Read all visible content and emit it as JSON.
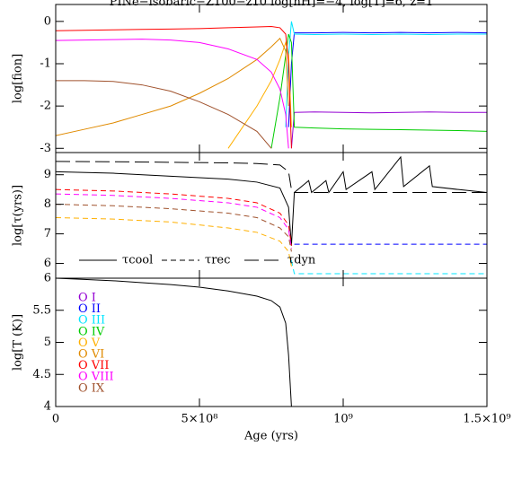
{
  "chart_data": [
    {
      "type": "line",
      "title": "PINe−isobaric−Z100−z10  log[nH]=−4, log[T]=6, z=1",
      "ylabel": "log[fion]",
      "x": [
        0,
        100000000,
        200000000,
        300000000,
        400000000,
        500000000,
        600000000,
        700000000,
        750000000,
        780000000,
        800000000,
        810000000,
        820000000,
        830000000,
        900000000,
        1000000000,
        1100000000,
        1200000000,
        1300000000,
        1400000000,
        1500000000
      ],
      "xlim": [
        0,
        1500000000
      ],
      "ylim": [
        -3.1,
        0.4
      ],
      "yticks": [
        0,
        -1,
        -2,
        -3
      ],
      "series": [
        {
          "name": "O I",
          "color": "#9400d3",
          "dash": "solid",
          "values": [
            null,
            null,
            null,
            null,
            null,
            null,
            null,
            null,
            null,
            null,
            null,
            null,
            -3,
            -2.15,
            -2.14,
            -2.15,
            -2.16,
            -2.15,
            -2.14,
            -2.15,
            -2.15
          ]
        },
        {
          "name": "O II",
          "color": "#0000ff",
          "dash": "solid",
          "values": [
            null,
            null,
            null,
            null,
            null,
            null,
            null,
            null,
            null,
            null,
            null,
            -2.5,
            -1,
            -0.27,
            -0.27,
            -0.26,
            -0.27,
            -0.26,
            -0.27,
            -0.26,
            -0.27
          ]
        },
        {
          "name": "O III",
          "color": "#00e5ff",
          "dash": "solid",
          "values": [
            null,
            null,
            null,
            null,
            null,
            null,
            null,
            null,
            null,
            null,
            -2.5,
            -0.8,
            0,
            -0.3,
            -0.31,
            -0.3,
            -0.31,
            -0.3,
            -0.31,
            -0.3,
            -0.3
          ]
        },
        {
          "name": "O IV",
          "color": "#00cc00",
          "dash": "solid",
          "values": [
            null,
            null,
            null,
            null,
            null,
            null,
            null,
            null,
            -3,
            -1.8,
            -0.8,
            -0.3,
            -0.5,
            -2.5,
            -2.52,
            -2.54,
            -2.55,
            -2.56,
            -2.57,
            -2.58,
            -2.6
          ]
        },
        {
          "name": "O V",
          "color": "#ffb000",
          "dash": "solid",
          "values": [
            null,
            null,
            null,
            null,
            null,
            null,
            -3,
            -2,
            -1.4,
            -0.9,
            -0.5,
            -0.8,
            -2.5,
            null,
            null,
            null,
            null,
            null,
            null,
            null,
            null
          ]
        },
        {
          "name": "O VI",
          "color": "#e08a00",
          "dash": "solid",
          "values": [
            -2.7,
            -2.55,
            -2.4,
            -2.2,
            -2.0,
            -1.7,
            -1.35,
            -0.9,
            -0.6,
            -0.4,
            -0.7,
            -2.0,
            null,
            null,
            null,
            null,
            null,
            null,
            null,
            null,
            null
          ]
        },
        {
          "name": "O VII",
          "color": "#ff0000",
          "dash": "solid",
          "values": [
            -0.22,
            -0.21,
            -0.2,
            -0.19,
            -0.18,
            -0.17,
            -0.15,
            -0.13,
            -0.12,
            -0.15,
            -0.3,
            -1.0,
            -3.0,
            null,
            null,
            null,
            null,
            null,
            null,
            null,
            null
          ]
        },
        {
          "name": "O VIII",
          "color": "#ff00ff",
          "dash": "solid",
          "values": [
            -0.45,
            -0.44,
            -0.43,
            -0.42,
            -0.44,
            -0.5,
            -0.65,
            -0.9,
            -1.2,
            -1.6,
            -2.2,
            -3.0,
            null,
            null,
            null,
            null,
            null,
            null,
            null,
            null,
            null
          ]
        },
        {
          "name": "O IX",
          "color": "#a0522d",
          "dash": "solid",
          "values": [
            -1.4,
            -1.4,
            -1.42,
            -1.5,
            -1.65,
            -1.9,
            -2.2,
            -2.6,
            -3.0,
            null,
            null,
            null,
            null,
            null,
            null,
            null,
            null,
            null,
            null,
            null,
            null
          ]
        }
      ]
    },
    {
      "type": "line",
      "ylabel": "log[τ(yrs)]",
      "x": [
        0,
        200000000,
        400000000,
        600000000,
        700000000,
        780000000,
        810000000,
        820000000,
        830000000,
        880000000,
        890000000,
        940000000,
        950000000,
        1000000000,
        1010000000,
        1100000000,
        1110000000,
        1200000000,
        1210000000,
        1300000000,
        1310000000,
        1400000000,
        1500000000
      ],
      "xlim": [
        0,
        1500000000
      ],
      "ylim": [
        5.5,
        9.75
      ],
      "yticks": [
        6,
        7,
        8,
        9
      ],
      "legend": [
        {
          "name": "τcool",
          "dash": "solid"
        },
        {
          "name": "τrec",
          "dash": "dashed"
        },
        {
          "name": "τdyn",
          "dash": "longdash"
        }
      ],
      "series": [
        {
          "color": "#000000",
          "dash": "solid",
          "values": [
            9.1,
            9.05,
            8.95,
            8.85,
            8.75,
            8.55,
            7.9,
            6.6,
            8.4,
            8.8,
            8.4,
            8.8,
            8.4,
            9.1,
            8.5,
            9.1,
            8.5,
            9.6,
            8.6,
            9.3,
            8.6,
            8.5,
            8.4
          ]
        },
        {
          "color": "#000000",
          "dash": "longdash",
          "values": [
            9.45,
            9.44,
            9.42,
            9.4,
            9.38,
            9.33,
            9.1,
            8.5,
            8.4,
            8.4,
            8.4,
            8.4,
            8.4,
            8.4,
            8.4,
            8.4,
            8.4,
            8.4,
            8.4,
            8.4,
            8.4,
            8.4,
            8.4
          ]
        },
        {
          "color": "#ff0000",
          "dash": "dashed",
          "values": [
            8.5,
            8.45,
            8.35,
            8.2,
            8.05,
            7.7,
            7.3,
            6.6,
            null,
            null,
            null,
            null,
            null,
            null,
            null,
            null,
            null,
            null,
            null,
            null,
            null,
            null,
            null
          ]
        },
        {
          "color": "#ff00ff",
          "dash": "dashed",
          "values": [
            8.35,
            8.3,
            8.2,
            8.05,
            7.9,
            7.55,
            7.15,
            6.5,
            null,
            null,
            null,
            null,
            null,
            null,
            null,
            null,
            null,
            null,
            null,
            null,
            null,
            null,
            null
          ]
        },
        {
          "color": "#a0522d",
          "dash": "dashed",
          "values": [
            8.0,
            7.95,
            7.85,
            7.7,
            7.55,
            7.2,
            6.9,
            6.4,
            null,
            null,
            null,
            null,
            null,
            null,
            null,
            null,
            null,
            null,
            null,
            null,
            null,
            null,
            null
          ]
        },
        {
          "color": "#ffb000",
          "dash": "dashed",
          "values": [
            7.55,
            7.5,
            7.4,
            7.2,
            7.05,
            6.75,
            6.4,
            5.9,
            null,
            null,
            null,
            null,
            null,
            null,
            null,
            null,
            null,
            null,
            null,
            null,
            null,
            null,
            null
          ]
        },
        {
          "color": "#0000ff",
          "dash": "dashed",
          "values": [
            null,
            null,
            null,
            null,
            null,
            null,
            null,
            null,
            6.65,
            6.65,
            6.65,
            6.65,
            6.65,
            6.65,
            6.65,
            6.65,
            6.65,
            6.65,
            6.65,
            6.65,
            6.65,
            6.65,
            6.65
          ]
        },
        {
          "color": "#00e5ff",
          "dash": "dashed",
          "values": [
            null,
            null,
            null,
            null,
            null,
            null,
            null,
            6.1,
            5.65,
            5.65,
            5.65,
            5.65,
            5.65,
            5.65,
            5.65,
            5.65,
            5.65,
            5.65,
            5.65,
            5.65,
            5.65,
            5.65,
            5.65
          ]
        }
      ]
    },
    {
      "type": "line",
      "ylabel": "log[T (K)]",
      "xlabel": "Age (yrs)",
      "x": [
        0,
        100000000,
        200000000,
        300000000,
        400000000,
        500000000,
        600000000,
        700000000,
        750000000,
        780000000,
        800000000,
        810000000,
        815000000,
        820000000
      ],
      "xlim": [
        0,
        1500000000
      ],
      "ylim": [
        4,
        6
      ],
      "yticks": [
        4,
        4.5,
        5,
        5.5,
        6
      ],
      "xticks": [
        0,
        {
          "value": 500000000,
          "label": "5×10⁸"
        },
        {
          "value": 1000000000,
          "label": "10⁹"
        },
        {
          "value": 1500000000,
          "label": "1.5×10⁹"
        }
      ],
      "series": [
        {
          "color": "#000000",
          "dash": "solid",
          "values": [
            6.0,
            5.98,
            5.96,
            5.93,
            5.9,
            5.86,
            5.8,
            5.72,
            5.65,
            5.55,
            5.3,
            4.8,
            4.4,
            4.0
          ]
        }
      ]
    }
  ]
}
